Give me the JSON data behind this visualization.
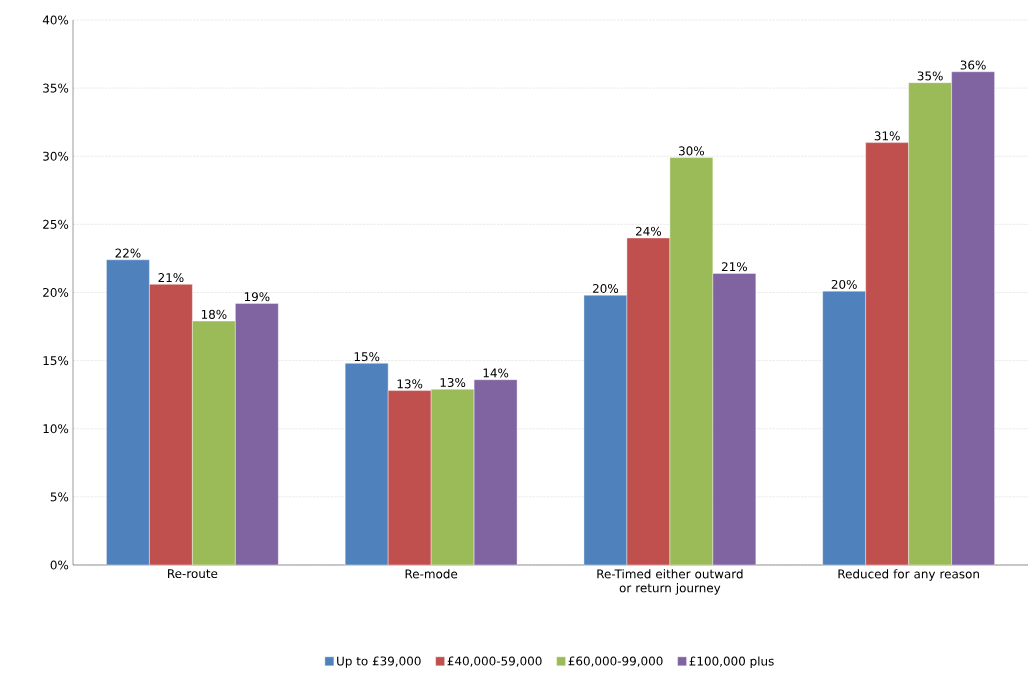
{
  "chart_data": {
    "type": "bar",
    "categories": [
      "Re-route",
      "Re-mode",
      "Re-Timed either outward or return journey",
      "Reduced for any reason"
    ],
    "series": [
      {
        "name": "Up to £39,000",
        "color": "#4f81bd",
        "values": [
          22.4,
          14.8,
          19.8,
          20.1
        ],
        "value_labels": [
          "22%",
          "15%",
          "20%",
          "20%"
        ]
      },
      {
        "name": "£40,000-59,000",
        "color": "#c0504d",
        "values": [
          20.6,
          12.8,
          24.0,
          31.0
        ],
        "value_labels": [
          "21%",
          "13%",
          "24%",
          "31%"
        ]
      },
      {
        "name": "£60,000-99,000",
        "color": "#9bbb59",
        "values": [
          17.9,
          12.9,
          29.9,
          35.4
        ],
        "value_labels": [
          "18%",
          "13%",
          "30%",
          "35%"
        ]
      },
      {
        "name": "£100,000 plus",
        "color": "#8064a2",
        "values": [
          19.2,
          13.6,
          21.4,
          36.2
        ],
        "value_labels": [
          "19%",
          "14%",
          "21%",
          "36%"
        ]
      }
    ],
    "ylim": [
      0,
      40
    ],
    "yticks": [
      {
        "value": 0,
        "label": "0%"
      },
      {
        "value": 5,
        "label": "5%"
      },
      {
        "value": 10,
        "label": "10%"
      },
      {
        "value": 15,
        "label": "15%"
      },
      {
        "value": 20,
        "label": "20%"
      },
      {
        "value": 25,
        "label": "25%"
      },
      {
        "value": 30,
        "label": "30%"
      },
      {
        "value": 35,
        "label": "35%"
      },
      {
        "value": 40,
        "label": "40%"
      }
    ],
    "grid": "y",
    "legend": "bottom"
  }
}
